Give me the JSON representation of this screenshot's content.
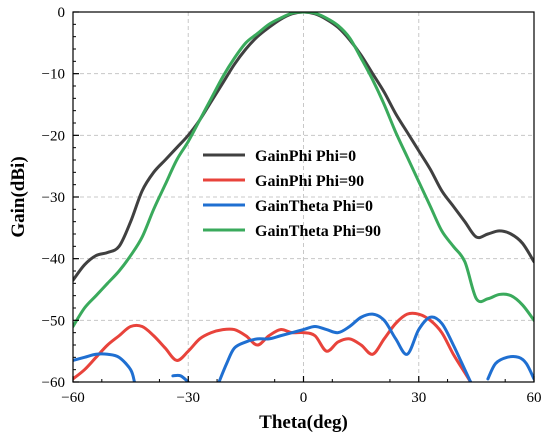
{
  "chart_data": {
    "type": "line",
    "xlabel": "Theta(deg)",
    "ylabel": "Gain(dBi)",
    "xlim": [
      -60,
      60
    ],
    "ylim": [
      -60,
      0
    ],
    "xticks": [
      -60,
      -30,
      0,
      30,
      60
    ],
    "yticks": [
      0,
      -10,
      -20,
      -30,
      -40,
      -50,
      -60
    ],
    "grid": true,
    "legend_position": "center-left",
    "series": [
      {
        "name": "GainPhi Phi=0",
        "color": "#404040",
        "x": [
          -60,
          -57,
          -54,
          -51,
          -48,
          -45,
          -42,
          -39,
          -36,
          -33,
          -30,
          -27,
          -24,
          -21,
          -18,
          -15,
          -12,
          -9,
          -6,
          -3,
          0,
          3,
          6,
          9,
          12,
          15,
          18,
          21,
          24,
          27,
          30,
          33,
          36,
          39,
          42,
          45,
          48,
          51,
          54,
          57,
          60
        ],
        "y": [
          -43.5,
          -41.0,
          -39.5,
          -39.0,
          -38.0,
          -34.0,
          -29.0,
          -26.0,
          -24.0,
          -22.0,
          -20.0,
          -17.5,
          -14.5,
          -11.5,
          -8.5,
          -6.0,
          -4.0,
          -2.5,
          -1.2,
          -0.3,
          0.0,
          -0.3,
          -1.2,
          -2.5,
          -4.5,
          -7.0,
          -10.0,
          -13.0,
          -16.5,
          -19.5,
          -22.5,
          -25.5,
          -29.0,
          -31.5,
          -34.0,
          -36.5,
          -36.0,
          -35.5,
          -36.0,
          -37.5,
          -40.5
        ]
      },
      {
        "name": "GainPhi Phi=90",
        "color": "#e8433b",
        "x": [
          -60,
          -57,
          -54,
          -51,
          -48,
          -45,
          -42,
          -39,
          -36,
          -33,
          -30,
          -27,
          -24,
          -21,
          -18,
          -15,
          -12,
          -9,
          -6,
          -3,
          0,
          3,
          6,
          9,
          12,
          15,
          18,
          21,
          24,
          27,
          30,
          33,
          36,
          39,
          42,
          43.5
        ],
        "y": [
          -59.5,
          -58.0,
          -56.0,
          -54.0,
          -52.5,
          -51.0,
          -51.0,
          -52.5,
          -54.5,
          -56.5,
          -55.0,
          -53.0,
          -52.0,
          -51.5,
          -51.5,
          -52.5,
          -54.0,
          -52.5,
          -51.5,
          -52.0,
          -52.0,
          -52.5,
          -55.0,
          -53.5,
          -53.0,
          -54.0,
          -55.5,
          -53.0,
          -50.5,
          -49.0,
          -49.0,
          -50.0,
          -52.0,
          -55.5,
          -58.5,
          -60.0
        ]
      },
      {
        "name": "GainTheta Phi=0",
        "color": "#1f6fd1",
        "x": [
          -60,
          -57,
          -54,
          -51,
          -48,
          -45,
          -44,
          -36,
          -34,
          -32,
          -30,
          -29,
          -22,
          -20,
          -18,
          -15,
          -12,
          -9,
          -6,
          -3,
          0,
          3,
          6,
          9,
          12,
          15,
          18,
          21,
          24,
          27,
          30,
          33,
          36,
          39,
          42,
          43.5,
          47,
          48,
          50,
          53,
          56,
          58,
          60
        ],
        "y": [
          -56.5,
          -56.0,
          -55.5,
          -55.5,
          -56.0,
          -58.0,
          -60.0,
          null,
          -59.0,
          -59.0,
          -60.0,
          null,
          -60.0,
          -57.0,
          -54.5,
          -53.5,
          -53.0,
          -53.0,
          -52.5,
          -52.0,
          -51.5,
          -51.0,
          -51.5,
          -52.0,
          -51.0,
          -49.5,
          -49.0,
          -50.0,
          -53.0,
          -55.5,
          -51.5,
          -49.5,
          -50.5,
          -54.0,
          -58.0,
          -60.0,
          null,
          -59.5,
          -57.0,
          -56.0,
          -56.0,
          -57.0,
          -59.5
        ]
      },
      {
        "name": "GainTheta Phi=90",
        "color": "#3aaa5c",
        "x": [
          -60,
          -57,
          -54,
          -51,
          -48,
          -45,
          -42,
          -39,
          -36,
          -33,
          -30,
          -27,
          -24,
          -21,
          -18,
          -15,
          -12,
          -9,
          -6,
          -3,
          0,
          3,
          6,
          9,
          12,
          15,
          18,
          21,
          24,
          27,
          30,
          33,
          36,
          39,
          42,
          45,
          48,
          51,
          54,
          57,
          60
        ],
        "y": [
          -51.0,
          -48.0,
          -46.0,
          -44.0,
          -42.0,
          -39.5,
          -36.5,
          -32.0,
          -28.0,
          -24.0,
          -21.0,
          -17.5,
          -14.0,
          -10.5,
          -7.5,
          -5.0,
          -3.5,
          -2.0,
          -1.0,
          -0.2,
          0.0,
          -0.2,
          -1.0,
          -2.2,
          -4.2,
          -7.5,
          -11.0,
          -15.0,
          -19.5,
          -23.5,
          -27.5,
          -31.5,
          -35.5,
          -38.0,
          -40.5,
          -46.5,
          -46.5,
          -45.8,
          -46.0,
          -47.5,
          -50.0
        ]
      }
    ]
  }
}
